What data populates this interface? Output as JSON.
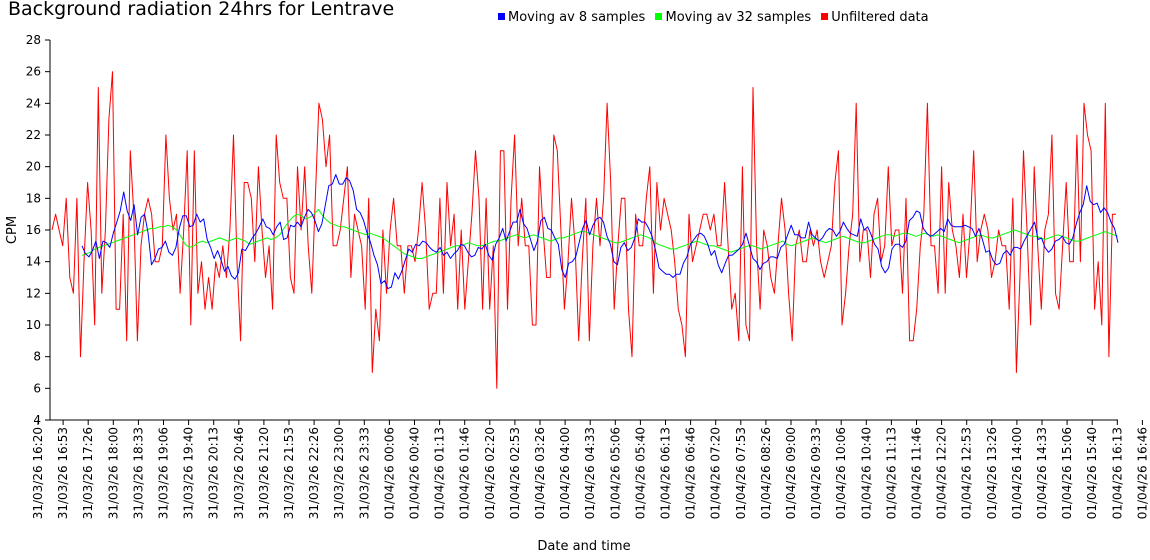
{
  "chart_data": {
    "type": "line",
    "title": "Background radiation 24hrs for Lentrave",
    "xlabel": "Date and time",
    "ylabel": "CPM",
    "ylim": [
      4,
      28
    ],
    "yticks": [
      4,
      6,
      8,
      10,
      12,
      14,
      16,
      18,
      20,
      22,
      24,
      26,
      28
    ],
    "grid": false,
    "legend_placement": "top",
    "x_tick_labels": [
      "31/03/26 16:20",
      "31/03/26 16:53",
      "31/03/26 17:26",
      "31/03/26 18:00",
      "31/03/26 18:33",
      "31/03/26 19:06",
      "31/03/26 19:40",
      "31/03/26 20:13",
      "31/03/26 20:46",
      "31/03/26 21:20",
      "31/03/26 21:53",
      "31/03/26 22:26",
      "31/03/26 23:00",
      "31/03/26 23:33",
      "01/04/26 00:06",
      "01/04/26 00:40",
      "01/04/26 01:13",
      "01/04/26 01:46",
      "01/04/26 02:20",
      "01/04/26 02:53",
      "01/04/26 03:26",
      "01/04/26 04:00",
      "01/04/26 04:33",
      "01/04/26 05:06",
      "01/04/26 05:40",
      "01/04/26 06:13",
      "01/04/26 06:46",
      "01/04/26 07:20",
      "01/04/26 07:53",
      "01/04/26 08:26",
      "01/04/26 09:00",
      "01/04/26 09:33",
      "01/04/26 10:06",
      "01/04/26 10:40",
      "01/04/26 11:13",
      "01/04/26 11:46",
      "01/04/26 12:20",
      "01/04/26 12:53",
      "01/04/26 13:26",
      "01/04/26 14:00",
      "01/04/26 14:33",
      "01/04/26 15:06",
      "01/04/26 15:40",
      "01/04/26 16:13",
      "01/04/26 16:46"
    ],
    "series": [
      {
        "name": "Moving av 8 samples",
        "color": "#0000ff",
        "values": [
          15,
          14.5,
          14.3,
          14.7,
          15.3,
          14.2,
          15.3,
          15.2,
          14.9,
          15.8,
          16.5,
          17.2,
          18.4,
          17.2,
          16.6,
          17.6,
          15.7,
          16.8,
          17,
          15.8,
          13.8,
          14.2,
          14.8,
          14.9,
          15.3,
          14.6,
          14.4,
          14.9,
          16.1,
          16.9,
          16.9,
          16.2,
          16.3,
          17,
          16.5,
          16.7,
          15.4,
          14.9,
          14.2,
          14.7,
          14.1,
          13.4,
          13.7,
          13.1,
          12.9,
          13.3,
          14.8,
          14.7,
          15.1,
          15.5,
          15.8,
          16.2,
          16.7,
          16.2,
          16.1,
          15.7,
          16.2,
          16.5,
          15.4,
          15.5,
          16.3,
          16.2,
          16.5,
          16.2,
          16.8,
          17.3,
          17.1,
          16.6,
          15.9,
          16.4,
          17.6,
          18.8,
          18.9,
          19.5,
          18.9,
          18.9,
          19.3,
          19.1,
          18.5,
          17.3,
          17.1,
          16.6,
          15.8,
          15.2,
          14.4,
          13.8,
          12.6,
          12.8,
          12.3,
          12.4,
          13.3,
          12.9,
          13.4,
          14.1,
          14.8,
          14.6,
          15.1,
          15,
          15.3,
          15.2,
          14.9,
          14.7,
          14.6,
          14.9,
          14.4,
          14.6,
          14.2,
          14.5,
          14.7,
          15.1,
          15,
          14.6,
          14.3,
          14.4,
          14.9,
          14.8,
          15.1,
          14.4,
          14.1,
          15.1,
          15.5,
          16.1,
          15.3,
          15.9,
          16.5,
          16.5,
          17.3,
          16.4,
          16.1,
          15.4,
          14.7,
          15.3,
          16.6,
          16.8,
          16.1,
          16,
          15.5,
          15.1,
          13.5,
          13,
          13.9,
          14,
          14.3,
          15.2,
          16.1,
          16.6,
          15.7,
          16.3,
          16.7,
          16.8,
          16.5,
          15.6,
          15.1,
          14,
          13.8,
          14.9,
          15.2,
          14.7,
          14.9,
          15.5,
          16.7,
          16.5,
          16.5,
          16.1,
          15.6,
          14.7,
          13.6,
          13.4,
          13.2,
          13.2,
          13,
          13.2,
          13.2,
          13.9,
          14.3,
          15.1,
          15.4,
          15.7,
          15.8,
          15.6,
          15.1,
          14.4,
          14.7,
          13.8,
          13.3,
          13.9,
          14.4,
          14.4,
          14.6,
          14.8,
          15.1,
          15.8,
          15,
          14.2,
          14,
          13.5,
          13.9,
          14,
          14.3,
          14.3,
          14.2,
          14.9,
          15.1,
          15.7,
          16.3,
          15.7,
          15.7,
          15.5,
          15.5,
          16.5,
          15.7,
          15.5,
          15.3,
          15.5,
          15.9,
          16.1,
          16,
          15.6,
          15.9,
          16.5,
          16.1,
          15.8,
          15.7,
          15.6,
          16.7,
          16,
          16.2,
          15.7,
          15.1,
          14.8,
          13.7,
          13.3,
          13.6,
          14.8,
          15.1,
          15.1,
          14.9,
          15.3,
          16.6,
          16.8,
          17.2,
          17.1,
          16.1,
          15.8,
          15.6,
          15.7,
          15.9,
          16.1,
          15.9,
          16.7,
          16.3,
          16.2,
          16.2,
          16.2,
          16.3,
          16.2,
          16.1,
          15.6,
          16.1,
          15.4,
          14.6,
          14.7,
          14.1,
          13.8,
          13.9,
          14.5,
          14.7,
          14.4,
          14.9,
          14.9,
          14.8,
          15.3,
          15.7,
          16.1,
          16.5,
          15.4,
          15.5,
          14.9,
          14.6,
          14.8,
          15.3,
          15.4,
          15.6,
          15.2,
          15.1,
          15.5,
          16.4,
          17.1,
          17.6,
          18.8,
          17.8,
          17.6,
          17.7,
          17.1,
          17.4,
          17.1,
          16.5,
          16.1,
          15.2
        ]
      },
      {
        "name": "Moving av 32 samples",
        "color": "#00ff00",
        "values": [
          14.4,
          14.5,
          14.6,
          14.8,
          14.9,
          15.0,
          15.1,
          15.2,
          15.3,
          15.4,
          15.5,
          15.6,
          15.7,
          15.8,
          15.9,
          16.0,
          16.1,
          16.1,
          16.2,
          16.2,
          16.3,
          16.2,
          16.0,
          15.6,
          15.1,
          14.9,
          15.0,
          15.2,
          15.3,
          15.2,
          15.3,
          15.4,
          15.5,
          15.4,
          15.3,
          15.4,
          15.5,
          15.4,
          15.3,
          15.1,
          15.2,
          15.3,
          15.4,
          15.5,
          15.4,
          15.5,
          15.7,
          16.1,
          16.5,
          16.8,
          17.0,
          16.9,
          16.7,
          16.8,
          17.0,
          17.3,
          16.9,
          16.6,
          16.4,
          16.3,
          16.2,
          16.2,
          16.1,
          16.0,
          15.9,
          15.8,
          15.7,
          15.8,
          15.7,
          15.6,
          15.5,
          15.3,
          15.1,
          14.9,
          14.7,
          14.5,
          14.4,
          14.3,
          14.2,
          14.2,
          14.3,
          14.4,
          14.5,
          14.6,
          14.7,
          14.8,
          14.9,
          15.0,
          15.0,
          15.1,
          15.2,
          15.1,
          15.0,
          15.0,
          15.1,
          15.2,
          15.3,
          15.3,
          15.4,
          15.5,
          15.6,
          15.7,
          15.6,
          15.5,
          15.6,
          15.7,
          15.6,
          15.5,
          15.4,
          15.3,
          15.4,
          15.5,
          15.5,
          15.6,
          15.7,
          15.8,
          15.9,
          15.9,
          15.8,
          15.7,
          15.6,
          15.5,
          15.4,
          15.3,
          15.2,
          15.2,
          15.3,
          15.4,
          15.5,
          15.6,
          15.7,
          15.6,
          15.5,
          15.3,
          15.1,
          15.0,
          14.9,
          14.8,
          14.8,
          14.9,
          15.0,
          15.1,
          15.2,
          15.3,
          15.2,
          15.1,
          15.0,
          15.0,
          14.9,
          14.8,
          14.7,
          14.6,
          14.7,
          14.8,
          14.9,
          15.0,
          15.0,
          14.9,
          14.8,
          14.9,
          15.0,
          15.1,
          15.2,
          15.3,
          15.1,
          15.0,
          15.1,
          15.2,
          15.3,
          15.4,
          15.5,
          15.4,
          15.3,
          15.2,
          15.3,
          15.4,
          15.5,
          15.6,
          15.5,
          15.4,
          15.3,
          15.2,
          15.2,
          15.3,
          15.4,
          15.5,
          15.6,
          15.7,
          15.7,
          15.6,
          15.7,
          15.8,
          15.8,
          15.7,
          15.6,
          15.7,
          15.8,
          15.7,
          15.6,
          15.7,
          15.6,
          15.5,
          15.4,
          15.3,
          15.2,
          15.3,
          15.4,
          15.5,
          15.6,
          15.7,
          15.6,
          15.5,
          15.5,
          15.6,
          15.7,
          15.8,
          15.9,
          16.0,
          15.9,
          15.8,
          15.7,
          15.6,
          15.6,
          15.5,
          15.4,
          15.5,
          15.6,
          15.7,
          15.6,
          15.5,
          15.4,
          15.3,
          15.3,
          15.4,
          15.5,
          15.6,
          15.7,
          15.8,
          15.9,
          15.8,
          15.7,
          15.6
        ]
      },
      {
        "name": "Unfiltered data",
        "color": "#ff0000",
        "values": [
          16,
          17,
          16,
          15,
          18,
          13,
          12,
          18,
          8,
          14,
          19,
          16,
          10,
          25,
          12,
          16,
          23,
          26,
          11,
          11,
          17,
          9,
          21,
          17,
          9,
          15,
          17,
          18,
          17,
          14,
          14,
          15,
          22,
          18,
          16,
          17,
          12,
          16,
          21,
          10,
          21,
          12,
          14,
          11,
          13,
          11,
          14,
          13,
          15,
          13,
          16,
          22,
          14,
          9,
          19,
          19,
          18,
          14,
          20,
          16,
          13,
          15,
          11,
          22,
          19,
          18,
          18,
          13,
          12,
          20,
          16,
          20,
          15,
          12,
          18,
          24,
          23,
          20,
          22,
          15,
          15,
          16,
          18,
          20,
          13,
          17,
          16,
          15,
          11,
          18,
          7,
          11,
          9,
          16,
          12,
          16,
          18,
          15,
          15,
          12,
          15,
          15,
          14,
          16,
          19,
          16,
          11,
          12,
          12,
          18,
          12,
          19,
          15,
          17,
          11,
          16,
          11,
          14,
          17,
          21,
          18,
          11,
          18,
          11,
          15,
          6,
          21,
          21,
          11,
          18,
          22,
          15,
          18,
          15,
          15,
          10,
          10,
          20,
          16,
          13,
          13,
          22,
          21,
          16,
          11,
          14,
          18,
          15,
          9,
          14,
          18,
          9,
          15,
          18,
          15,
          18,
          24,
          19,
          11,
          15,
          18,
          18,
          11,
          8,
          17,
          15,
          15,
          18,
          20,
          12,
          19,
          16,
          18,
          17,
          16,
          14,
          11,
          10,
          8,
          17,
          14,
          15,
          16,
          17,
          17,
          16,
          17,
          15,
          15,
          19,
          15,
          11,
          12,
          9,
          20,
          10,
          9,
          25,
          15,
          11,
          16,
          15,
          13,
          12,
          15,
          18,
          16,
          12,
          9,
          15,
          16,
          14,
          14,
          16,
          15,
          16,
          14,
          13,
          14,
          15,
          19,
          21,
          10,
          12,
          15,
          17,
          24,
          14,
          16,
          16,
          13,
          17,
          18,
          14,
          15,
          20,
          15,
          16,
          16,
          12,
          18,
          9,
          9,
          11,
          15,
          17,
          24,
          15,
          15,
          12,
          20,
          12,
          19,
          16,
          15,
          13,
          17,
          13,
          16,
          21,
          14,
          16,
          17,
          16,
          13,
          14,
          16,
          15,
          15,
          11,
          18,
          7,
          13,
          21,
          16,
          10,
          20,
          15,
          11,
          16,
          17,
          22,
          12,
          11,
          15,
          19,
          14,
          14,
          22,
          14,
          24,
          22,
          21,
          11,
          14,
          10,
          24,
          8,
          17,
          17
        ]
      }
    ]
  }
}
